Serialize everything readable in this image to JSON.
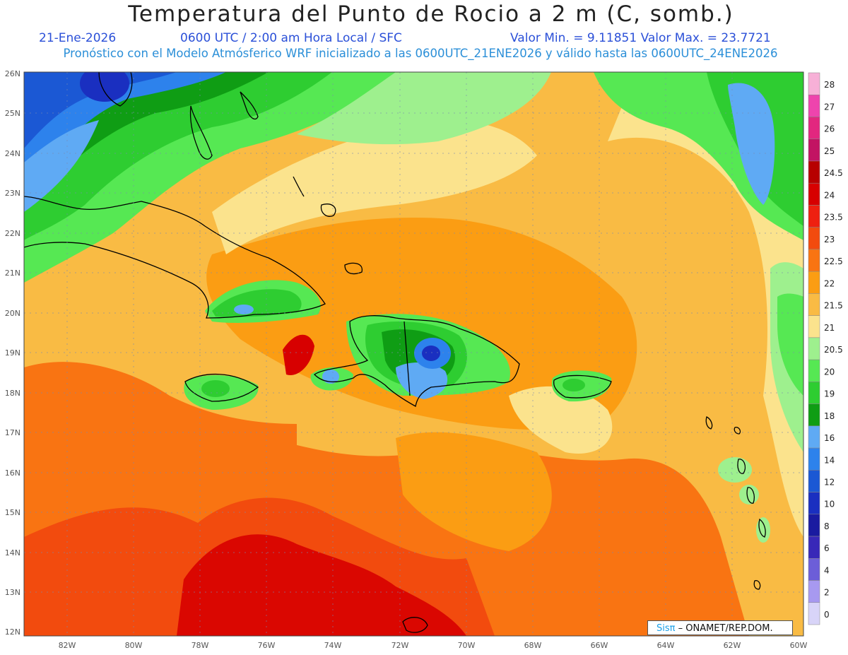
{
  "header": {
    "title": "Temperatura del Punto de Rocio a 2 m (C, somb.)",
    "date": "21-Ene-2026",
    "time": "0600 UTC / 2:00 am Hora Local / SFC",
    "minmax": "Valor Min. = 9.11851  Valor Max. = 23.7721",
    "model_info": "Pronóstico con el Modelo Atmósferico WRF inicializado a las 0600UTC_21ENE2026 y válido hasta las  0600UTC_24ENE2026"
  },
  "map": {
    "lat_labels": [
      "26N",
      "25N",
      "24N",
      "23N",
      "22N",
      "21N",
      "20N",
      "19N",
      "18N",
      "17N",
      "16N",
      "15N",
      "14N",
      "13N",
      "12N"
    ],
    "lon_labels": [
      "82W",
      "80W",
      "78W",
      "76W",
      "74W",
      "72W",
      "70W",
      "68W",
      "66W",
      "64W",
      "62W",
      "60W"
    ],
    "extent": {
      "lon_min": -83.3,
      "lon_max": -60,
      "lat_min": 11.9,
      "lat_max": 26.1
    }
  },
  "legend": {
    "levels": [
      "28",
      "27",
      "26",
      "25",
      "24.5",
      "24",
      "23.5",
      "23",
      "22.5",
      "22",
      "21.5",
      "21",
      "20.5",
      "20",
      "19",
      "18",
      "16",
      "14",
      "12",
      "10",
      "8",
      "6",
      "4",
      "2",
      "0"
    ],
    "colors": [
      "#f7b0d7",
      "#ee44ad",
      "#e2277f",
      "#c21463",
      "#b70000",
      "#d70000",
      "#ee2010",
      "#f24b0e",
      "#f97412",
      "#fb9d13",
      "#f9bb44",
      "#fbe38d",
      "#9ef08e",
      "#56e853",
      "#2ecd31",
      "#0f9d14",
      "#5faaf4",
      "#2d82ec",
      "#1b58d4",
      "#1a2fc0",
      "#1a1ba0",
      "#3828b8",
      "#6c5ed8",
      "#a799f0",
      "#d8d4f8"
    ]
  },
  "credit": {
    "brand": "Sisπ",
    "text": "– ONAMET/REP.DOM."
  }
}
